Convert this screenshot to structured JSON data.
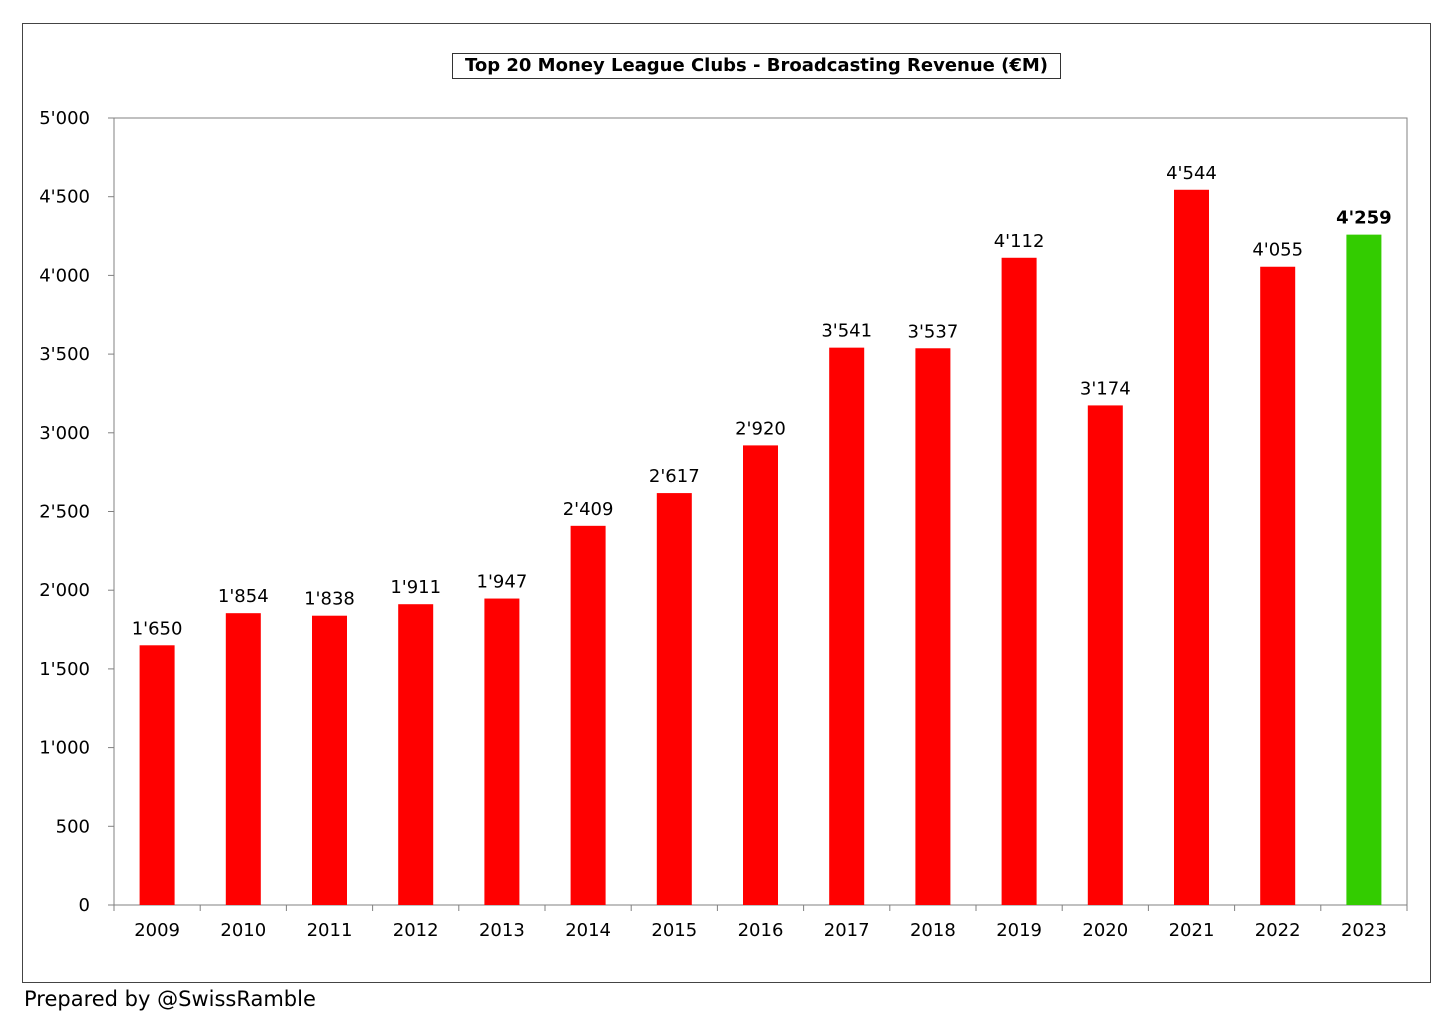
{
  "chart_data": {
    "type": "bar",
    "title": "Top 20 Money League Clubs - Broadcasting Revenue (€M)",
    "xlabel": "",
    "ylabel": "",
    "categories": [
      "2009",
      "2010",
      "2011",
      "2012",
      "2013",
      "2014",
      "2015",
      "2016",
      "2017",
      "2018",
      "2019",
      "2020",
      "2021",
      "2022",
      "2023"
    ],
    "values": [
      1650,
      1854,
      1838,
      1911,
      1947,
      2409,
      2617,
      2920,
      3541,
      3537,
      4112,
      3174,
      4544,
      4055,
      4259
    ],
    "data_labels": [
      "1'650",
      "1'854",
      "1'838",
      "1'911",
      "1'947",
      "2'409",
      "2'617",
      "2'920",
      "3'541",
      "3'537",
      "4'112",
      "3'174",
      "4'544",
      "4'055",
      "4'259"
    ],
    "highlight_index": 14,
    "ylim": [
      0,
      5000
    ],
    "yticks": [
      0,
      500,
      1000,
      1500,
      2000,
      2500,
      3000,
      3500,
      4000,
      4500,
      5000
    ],
    "ytick_labels": [
      "0",
      "500",
      "1'000",
      "1'500",
      "2'000",
      "2'500",
      "3'000",
      "3'500",
      "4'000",
      "4'500",
      "5'000"
    ],
    "grid": false,
    "legend": "none",
    "colors": {
      "bar": "#ff0000",
      "highlight_bar": "#33cc00",
      "axis": "#808080"
    }
  },
  "footer": {
    "credit": "Prepared by @SwissRamble"
  }
}
